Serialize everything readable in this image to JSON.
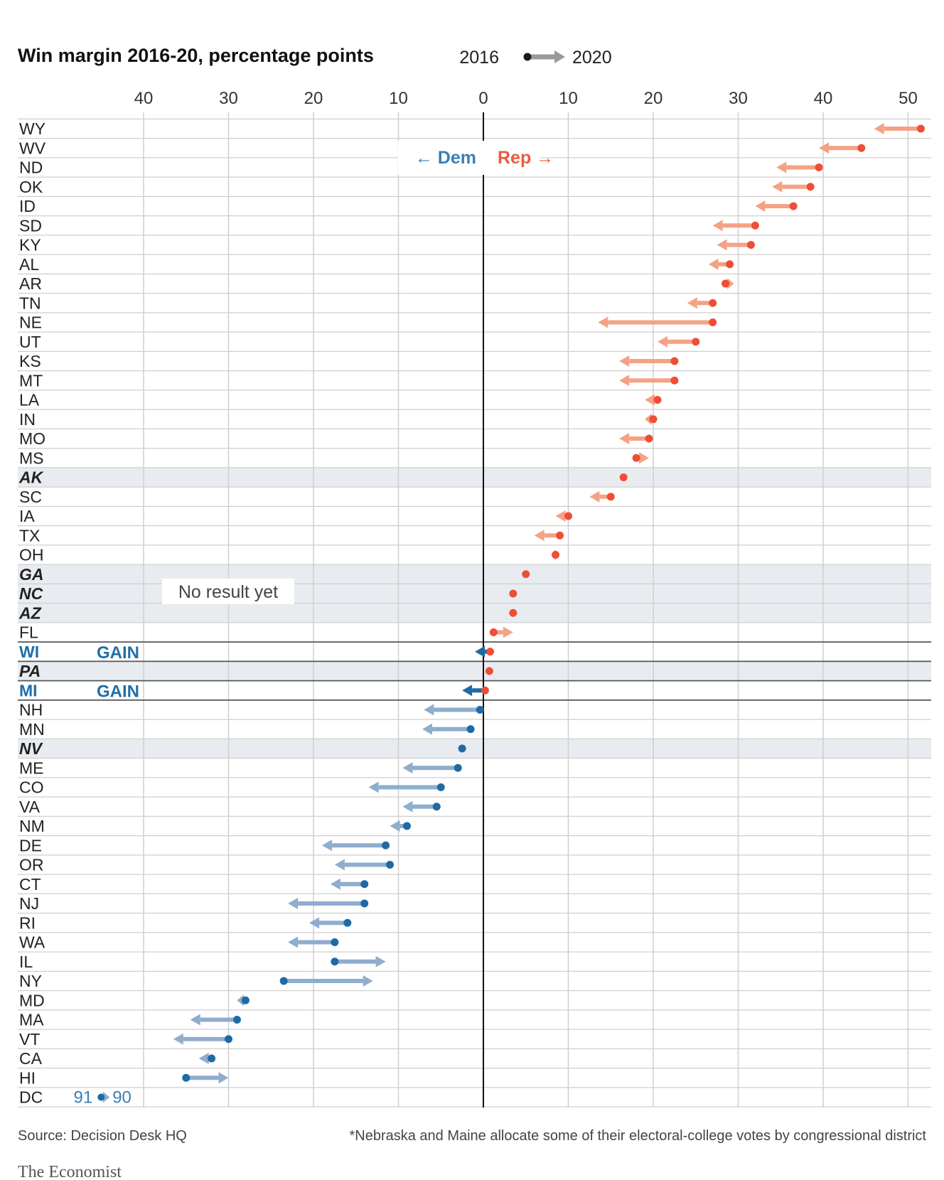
{
  "colors": {
    "rep_dot": "#ee4e35",
    "rep_arrow": "#f4a286",
    "dem_dot": "#1f6aa5",
    "dem_arrow": "#8fadcc",
    "gain_arrow": "#1f6aa5",
    "tossup_band": "#e8ecf0",
    "grid": "#cfcfcf"
  },
  "chart_data": {
    "type": "dumbbell-arrow",
    "title": "Win margin 2016-20, percentage points",
    "legend": {
      "from_label": "2016",
      "to_label": "2020"
    },
    "x_ticks": [
      {
        "value": -40,
        "label": "40"
      },
      {
        "value": -30,
        "label": "30"
      },
      {
        "value": -20,
        "label": "20"
      },
      {
        "value": -10,
        "label": "10"
      },
      {
        "value": 0,
        "label": "0"
      },
      {
        "value": 10,
        "label": "10"
      },
      {
        "value": 20,
        "label": "20"
      },
      {
        "value": 30,
        "label": "30"
      },
      {
        "value": 40,
        "label": "40"
      },
      {
        "value": 50,
        "label": "50"
      }
    ],
    "xlim": [
      -54.5,
      52.5
    ],
    "direction_labels": {
      "dem": "← Dem",
      "rep": "Rep →"
    },
    "no_result_label": "No result yet",
    "gain_label": "GAIN",
    "rows": [
      {
        "state": "WY",
        "m2016": 51.5,
        "m2020": 46,
        "party": "rep"
      },
      {
        "state": "WV",
        "m2016": 44.5,
        "m2020": 39.5,
        "party": "rep"
      },
      {
        "state": "ND",
        "m2016": 39.5,
        "m2020": 34.5,
        "party": "rep"
      },
      {
        "state": "OK",
        "m2016": 38.5,
        "m2020": 34,
        "party": "rep"
      },
      {
        "state": "ID",
        "m2016": 36.5,
        "m2020": 32,
        "party": "rep"
      },
      {
        "state": "SD",
        "m2016": 32,
        "m2020": 27,
        "party": "rep"
      },
      {
        "state": "KY",
        "m2016": 31.5,
        "m2020": 27.5,
        "party": "rep"
      },
      {
        "state": "AL",
        "m2016": 29,
        "m2020": 26.5,
        "party": "rep"
      },
      {
        "state": "AR",
        "m2016": 28.5,
        "m2020": 29.5,
        "party": "rep"
      },
      {
        "state": "TN",
        "m2016": 27,
        "m2020": 24,
        "party": "rep"
      },
      {
        "state": "NE",
        "m2016": 27,
        "m2020": 13.5,
        "party": "rep"
      },
      {
        "state": "UT",
        "m2016": 25,
        "m2020": 20.5,
        "party": "rep"
      },
      {
        "state": "KS",
        "m2016": 22.5,
        "m2020": 16,
        "party": "rep"
      },
      {
        "state": "MT",
        "m2016": 22.5,
        "m2020": 16,
        "party": "rep"
      },
      {
        "state": "LA",
        "m2016": 20.5,
        "m2020": 19,
        "party": "rep"
      },
      {
        "state": "IN",
        "m2016": 20,
        "m2020": 19,
        "party": "rep"
      },
      {
        "state": "MO",
        "m2016": 19.5,
        "m2020": 16,
        "party": "rep"
      },
      {
        "state": "MS",
        "m2016": 18,
        "m2020": 19.5,
        "party": "rep"
      },
      {
        "state": "AK",
        "m2016": 16.5,
        "m2020": null,
        "party": "rep",
        "tossup": true
      },
      {
        "state": "SC",
        "m2016": 15,
        "m2020": 12.5,
        "party": "rep"
      },
      {
        "state": "IA",
        "m2016": 10,
        "m2020": 8.5,
        "party": "rep"
      },
      {
        "state": "TX",
        "m2016": 9,
        "m2020": 6,
        "party": "rep"
      },
      {
        "state": "OH",
        "m2016": 8.5,
        "m2020": 8,
        "party": "rep"
      },
      {
        "state": "GA",
        "m2016": 5,
        "m2020": null,
        "party": "rep",
        "tossup": true
      },
      {
        "state": "NC",
        "m2016": 3.5,
        "m2020": null,
        "party": "rep",
        "tossup": true
      },
      {
        "state": "AZ",
        "m2016": 3.5,
        "m2020": null,
        "party": "rep",
        "tossup": true
      },
      {
        "state": "FL",
        "m2016": 1.2,
        "m2020": 3.5,
        "party": "rep"
      },
      {
        "state": "WI",
        "m2016": 0.8,
        "m2020": -1,
        "party": "gain",
        "gain": true
      },
      {
        "state": "PA",
        "m2016": 0.7,
        "m2020": null,
        "party": "rep",
        "tossup": true
      },
      {
        "state": "MI",
        "m2016": 0.2,
        "m2020": -2.5,
        "party": "gain",
        "gain": true
      },
      {
        "state": "NH",
        "m2016": -0.4,
        "m2020": -7,
        "party": "dem"
      },
      {
        "state": "MN",
        "m2016": -1.5,
        "m2020": -7.2,
        "party": "dem"
      },
      {
        "state": "NV",
        "m2016": -2.5,
        "m2020": null,
        "party": "dem",
        "tossup": true
      },
      {
        "state": "ME",
        "m2016": -3,
        "m2020": -9.5,
        "party": "dem"
      },
      {
        "state": "CO",
        "m2016": -5,
        "m2020": -13.5,
        "party": "dem"
      },
      {
        "state": "VA",
        "m2016": -5.5,
        "m2020": -9.5,
        "party": "dem"
      },
      {
        "state": "NM",
        "m2016": -9,
        "m2020": -11,
        "party": "dem"
      },
      {
        "state": "DE",
        "m2016": -11.5,
        "m2020": -19,
        "party": "dem"
      },
      {
        "state": "OR",
        "m2016": -11,
        "m2020": -17.5,
        "party": "dem"
      },
      {
        "state": "CT",
        "m2016": -14,
        "m2020": -18,
        "party": "dem"
      },
      {
        "state": "NJ",
        "m2016": -14,
        "m2020": -23,
        "party": "dem"
      },
      {
        "state": "RI",
        "m2016": -16,
        "m2020": -20.5,
        "party": "dem"
      },
      {
        "state": "WA",
        "m2016": -17.5,
        "m2020": -23,
        "party": "dem"
      },
      {
        "state": "IL",
        "m2016": -17.5,
        "m2020": -11.5,
        "party": "dem"
      },
      {
        "state": "NY",
        "m2016": -23.5,
        "m2020": -13,
        "party": "dem"
      },
      {
        "state": "MD",
        "m2016": -28,
        "m2020": -29,
        "party": "dem"
      },
      {
        "state": "MA",
        "m2016": -29,
        "m2020": -34.5,
        "party": "dem"
      },
      {
        "state": "VT",
        "m2016": -30,
        "m2020": -36.5,
        "party": "dem"
      },
      {
        "state": "CA",
        "m2016": -32,
        "m2020": -33.5,
        "party": "dem"
      },
      {
        "state": "HI",
        "m2016": -35,
        "m2020": -30,
        "party": "dem"
      },
      {
        "state": "DC",
        "m2016": -45,
        "m2020": -44,
        "party": "dem",
        "offscale": true,
        "label2016": "91",
        "label2020": "90"
      }
    ],
    "source": "Source: Decision Desk HQ",
    "footnote": "*Nebraska and Maine allocate some of their electoral-college votes by congressional district",
    "brand": "The Economist"
  }
}
